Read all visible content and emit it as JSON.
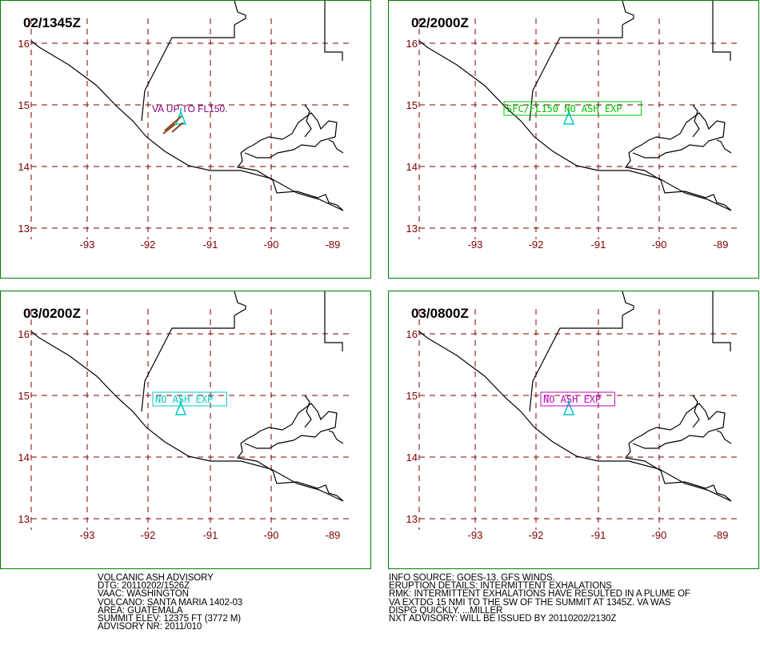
{
  "panels": [
    {
      "title": "02/1345Z",
      "label": "VA UP TO FL150.",
      "label_style": "plain",
      "label_color": "#800080",
      "has_plume": true
    },
    {
      "title": "02/2000Z",
      "label": "SFC/FL150  NO  ASH  EXP",
      "label_style": "box",
      "label_color": "#00c000",
      "has_plume": false
    },
    {
      "title": "03/0200Z",
      "label": "NO  ASH  EXP",
      "label_style": "box",
      "label_color": "#00c8c8",
      "has_plume": false
    },
    {
      "title": "03/0800Z",
      "label": "NO  ASH  EXP",
      "label_style": "box",
      "label_color": "#c000c0",
      "has_plume": false
    }
  ],
  "map": {
    "lat_labels": [
      "16",
      "15",
      "14",
      "13"
    ],
    "lon_labels": [
      "-93",
      "-92",
      "-91",
      "-90",
      "-89"
    ],
    "grid_color": "#800000",
    "volcano_color": "#00c8c8",
    "plume_color": "#8b4513"
  },
  "advisory_left": [
    "VOLCANIC ASH ADVISORY",
    "DTG: 20110202/1526Z",
    "VAAC: WASHINGTON",
    "VOLCANO: SANTA MARIA 1402-03",
    "AREA: GUATEMALA",
    "SUMMIT ELEV: 12375 FT (3772 M)",
    "ADVISORY NR: 2011/010"
  ],
  "advisory_right": [
    "INFO SOURCE: GOES-13. GFS WINDS.",
    "ERUPTION DETAILS: INTERMITTENT EXHALATIONS",
    "RMK: INTERMITTENT EXHALATIONS HAVE RESULTED IN A PLUME OF",
    "VA EXTDG 15 NMI TO THE SW OF THE SUMMIT AT 1345Z. VA WAS",
    "DISPG QUICKLY.  ...MILLER",
    "NXT ADVISORY: WILL BE ISSUED BY 20110202/2130Z"
  ]
}
